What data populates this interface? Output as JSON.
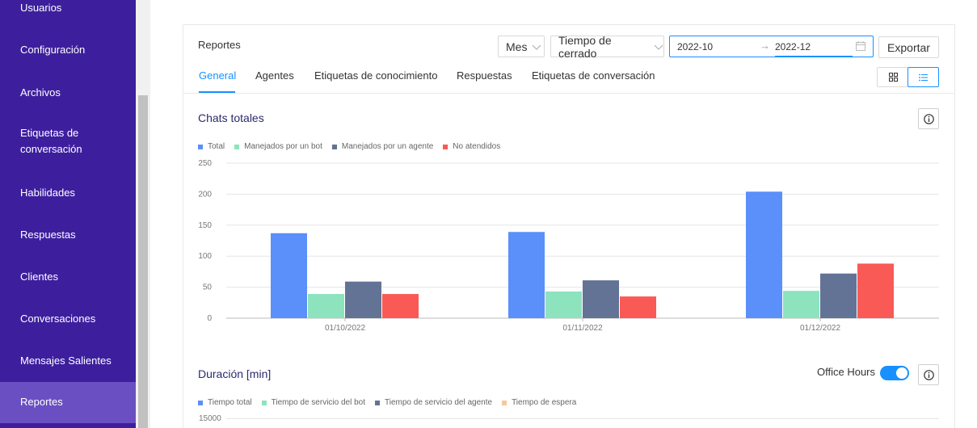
{
  "sidebar": {
    "items": [
      {
        "label": "Usuarios",
        "name": "sidebar-item-usuarios"
      },
      {
        "label": "Configuración",
        "name": "sidebar-item-configuracion"
      },
      {
        "label": "Archivos",
        "name": "sidebar-item-archivos"
      },
      {
        "label": "Etiquetas de\nconversación",
        "name": "sidebar-item-etiquetas"
      },
      {
        "label": "Habilidades",
        "name": "sidebar-item-habilidades"
      },
      {
        "label": "Respuestas",
        "name": "sidebar-item-respuestas"
      },
      {
        "label": "Clientes",
        "name": "sidebar-item-clientes"
      },
      {
        "label": "Conversaciones",
        "name": "sidebar-item-conversaciones"
      },
      {
        "label": "Mensajes Salientes",
        "name": "sidebar-item-mensajes"
      },
      {
        "label": "Reportes",
        "name": "sidebar-item-reportes",
        "active": true
      }
    ]
  },
  "header": {
    "title": "Reportes",
    "period_select": "Mes",
    "metric_select": "Tiempo de cerrado",
    "date_start": "2022-10",
    "date_end": "2022-12",
    "export_label": "Exportar"
  },
  "tabs": [
    "General",
    "Agentes",
    "Etiquetas de conocimiento",
    "Respuestas",
    "Etiquetas de conversación"
  ],
  "active_tab": "General",
  "colors": {
    "total": "#5b8ff9",
    "bot": "#8ce3be",
    "agent": "#627395",
    "unattended": "#f95a55",
    "wait": "#f6c89a",
    "accent": "#1890ff",
    "sidebar": "#3d1f9e"
  },
  "section1": {
    "title": "Chats totales"
  },
  "section2": {
    "title": "Duración [min]",
    "toggle_label": "Office Hours",
    "toggle_on": true,
    "legend": [
      "Tiempo total",
      "Tiempo de servicio del bot",
      "Tiempo de servicio del agente",
      "Tiempo de espera"
    ],
    "y_top_tick": "15000"
  },
  "chart_data": {
    "type": "bar",
    "title": "Chats totales",
    "categories": [
      "01/10/2022",
      "01/11/2022",
      "01/12/2022"
    ],
    "series": [
      {
        "name": "Total",
        "values": [
          137,
          139,
          204
        ]
      },
      {
        "name": "Manejados por un bot",
        "values": [
          39,
          43,
          44
        ]
      },
      {
        "name": "Manejados por un agente",
        "values": [
          59,
          61,
          72
        ]
      },
      {
        "name": "No atendidos",
        "values": [
          39,
          35,
          88
        ]
      }
    ],
    "ylim": [
      0,
      250
    ],
    "yticks": [
      "250",
      "200",
      "150",
      "100",
      "50",
      "0"
    ],
    "grid": true,
    "legend_position": "top-left"
  }
}
